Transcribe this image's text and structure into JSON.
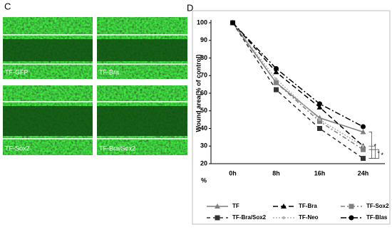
{
  "panel_c": {
    "label": "C",
    "images": [
      {
        "label": "TF-GFP"
      },
      {
        "label": "TF-Bra"
      },
      {
        "label": "TF-Sox2"
      },
      {
        "label": "TF-Bra/Sox2"
      }
    ]
  },
  "chart_data": {
    "type": "line",
    "panel_label": "D",
    "y_label": "Wound area(% of control)",
    "corner_label": "%",
    "categories": [
      "0h",
      "8h",
      "16h",
      "24h"
    ],
    "ylim": [
      20,
      100
    ],
    "yticks": [
      20,
      30,
      40,
      50,
      60,
      70,
      80,
      90,
      100
    ],
    "series": [
      {
        "name": "TF",
        "color": "#7f7f7f",
        "dash": "none",
        "marker": "triangle",
        "values": [
          100,
          66,
          46,
          38
        ]
      },
      {
        "name": "TF-Bra",
        "color": "#000000",
        "dash": "7,4",
        "marker": "triangle",
        "values": [
          100,
          72,
          52,
          30
        ]
      },
      {
        "name": "TF-Sox2",
        "color": "#808080",
        "dash": "6,3,2,3",
        "marker": "square",
        "values": [
          100,
          66,
          44,
          28
        ]
      },
      {
        "name": "TF-Bra/Sox2",
        "color": "#333333",
        "dash": "5,4",
        "marker": "square",
        "values": [
          100,
          62,
          40,
          23
        ]
      },
      {
        "name": "TF-Neo",
        "color": "#b0b0b0",
        "dash": "2,2",
        "marker": "dot",
        "values": [
          100,
          68,
          45,
          30
        ]
      },
      {
        "name": "TF-Blas",
        "color": "#000000",
        "dash": "8,3,2,3",
        "marker": "circle",
        "values": [
          100,
          74,
          54,
          41
        ]
      }
    ],
    "significance": [
      "*",
      "*",
      "*"
    ]
  }
}
